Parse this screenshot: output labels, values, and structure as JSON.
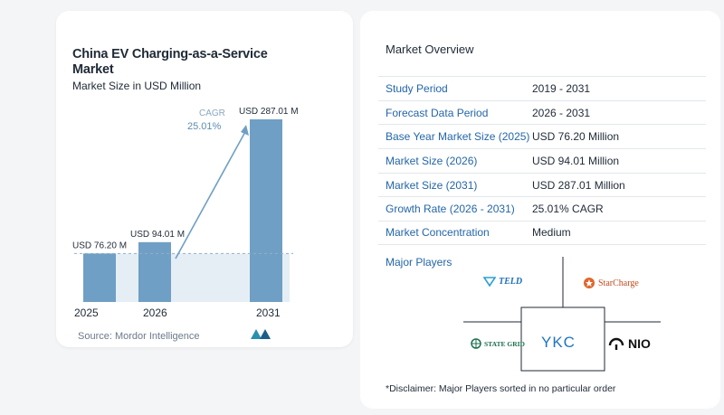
{
  "chart_data": {
    "type": "bar",
    "title": "China EV Charging-as-a-Service Market",
    "subtitle": "Market Size in USD Million",
    "categories": [
      "2025",
      "2026",
      "2031"
    ],
    "values": [
      76.2,
      94.01,
      287.01
    ],
    "value_labels": [
      "USD 76.20 M",
      "USD 94.01 M",
      "USD 287.01 M"
    ],
    "cagr_label": "CAGR",
    "cagr_value": "25.01%",
    "bar_color": "#6f9fc4",
    "ylim": [
      0,
      300
    ]
  },
  "source": "Source:  Mordor Intelligence",
  "overview": {
    "title": "Market Overview",
    "rows": [
      {
        "key": "Study Period",
        "value": "2019 - 2031"
      },
      {
        "key": "Forecast Data Period",
        "value": "2026 - 2031"
      },
      {
        "key": "Base Year Market Size (2025)",
        "value": "USD 76.20 Million"
      },
      {
        "key": "Market Size (2026)",
        "value": "USD 94.01 Million"
      },
      {
        "key": "Market Size (2031)",
        "value": "USD 287.01 Million"
      },
      {
        "key": "Growth Rate (2026 - 2031)",
        "value": "25.01% CAGR"
      },
      {
        "key": "Market Concentration",
        "value": "Medium"
      }
    ]
  },
  "players": {
    "title": "Major Players",
    "logos": {
      "teld": "TELD",
      "starcharge": "StarCharge",
      "stategrid": "STATE GRID",
      "ykc": "YKC",
      "nio": "NIO"
    }
  },
  "disclaimer": "*Disclaimer: Major Players sorted in no particular order"
}
